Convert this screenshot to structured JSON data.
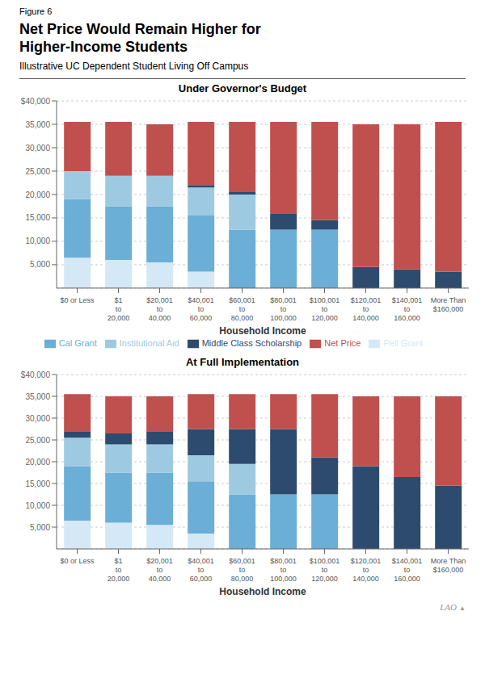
{
  "title": "Net Price Would Remain Higher for\nHigher-Income Students",
  "subtitle": "Illustrative UC Dependent Student Living Off Campus",
  "annotations": [
    "Figure 6",
    "LAO",
    "▲"
  ],
  "chart_data": [
    {
      "type": "bar",
      "stacked": true,
      "grid": true,
      "legend": "bottom",
      "title": "Under Governor's Budget",
      "xlabel": "Household Income",
      "categories": [
        "$0 or Less",
        "$1\nto\n20,000",
        "$20,001\nto\n40,000",
        "$40,001\nto\n60,000",
        "$60,001\nto\n80,000",
        "$80,001\nto\n100,000",
        "$100,001\nto\n120,000",
        "$120,001\nto\n140,000",
        "$140,001\nto\n160,000",
        "More Than\n$160,000"
      ],
      "series": [
        {
          "name": "Pell Grant",
          "color": "#d4e8f5",
          "values": [
            6500,
            6000,
            5500,
            3500,
            0,
            0,
            0,
            0,
            0,
            0
          ]
        },
        {
          "name": "Cal Grant",
          "color": "#6baed6",
          "values": [
            12500,
            11500,
            12000,
            12000,
            12500,
            12500,
            12500,
            0,
            0,
            0
          ]
        },
        {
          "name": "Institutional Aid",
          "color": "#9ecae1",
          "values": [
            6000,
            6500,
            6500,
            6000,
            7500,
            0,
            0,
            0,
            0,
            0
          ]
        },
        {
          "name": "Middle Class Scholarship",
          "color": "#2d4b6e",
          "values": [
            0,
            0,
            0,
            500,
            500,
            3500,
            2000,
            4500,
            4000,
            3500
          ]
        },
        {
          "name": "Net Price",
          "color": "#c0504d",
          "values": [
            10500,
            11500,
            11000,
            13500,
            15000,
            19500,
            21000,
            30500,
            31000,
            32000
          ]
        }
      ],
      "ylim": [
        0,
        40000
      ],
      "yticks": [
        {
          "value": 5000,
          "label": "5,000"
        },
        {
          "value": 10000,
          "label": "10,000"
        },
        {
          "value": 15000,
          "label": "15,000"
        },
        {
          "value": 20000,
          "label": "20,000"
        },
        {
          "value": 25000,
          "label": "25,000"
        },
        {
          "value": 30000,
          "label": "30,000"
        },
        {
          "value": 35000,
          "label": "35,000"
        },
        {
          "value": 40000,
          "label": "$40,000"
        }
      ]
    },
    {
      "type": "bar",
      "stacked": true,
      "grid": true,
      "title": "At Full Implementation",
      "xlabel": "Household Income",
      "categories": [
        "$0 or Less",
        "$1\nto\n20,000",
        "$20,001\nto\n40,000",
        "$40,001\nto\n60,000",
        "$60,001\nto\n80,000",
        "$80,001\nto\n100,000",
        "$100,001\nto\n120,000",
        "$120,001\nto\n140,000",
        "$140,001\nto\n160,000",
        "More Than\n$160,000"
      ],
      "series": [
        {
          "name": "Pell Grant",
          "color": "#d4e8f5",
          "values": [
            6500,
            6000,
            5500,
            3500,
            0,
            0,
            0,
            0,
            0,
            0
          ]
        },
        {
          "name": "Cal Grant",
          "color": "#6baed6",
          "values": [
            12500,
            11500,
            12000,
            12000,
            12500,
            12500,
            12500,
            0,
            0,
            0
          ]
        },
        {
          "name": "Institutional Aid",
          "color": "#9ecae1",
          "values": [
            6500,
            6500,
            6500,
            6000,
            7000,
            0,
            0,
            0,
            0,
            0
          ]
        },
        {
          "name": "Middle Class Scholarship",
          "color": "#2d4b6e",
          "values": [
            1500,
            2500,
            3000,
            6000,
            8000,
            15000,
            8500,
            19000,
            16500,
            14500
          ]
        },
        {
          "name": "Net Price",
          "color": "#c0504d",
          "values": [
            8500,
            8500,
            8000,
            8000,
            8000,
            8000,
            14500,
            16000,
            18500,
            20500
          ]
        }
      ],
      "ylim": [
        0,
        40000
      ],
      "yticks": [
        {
          "value": 5000,
          "label": "5,000"
        },
        {
          "value": 10000,
          "label": "10,000"
        },
        {
          "value": 15000,
          "label": "15,000"
        },
        {
          "value": 20000,
          "label": "20,000"
        },
        {
          "value": 25000,
          "label": "25,000"
        },
        {
          "value": 30000,
          "label": "30,000"
        },
        {
          "value": 35000,
          "label": "35,000"
        },
        {
          "value": 40000,
          "label": "$40,000"
        }
      ]
    }
  ]
}
